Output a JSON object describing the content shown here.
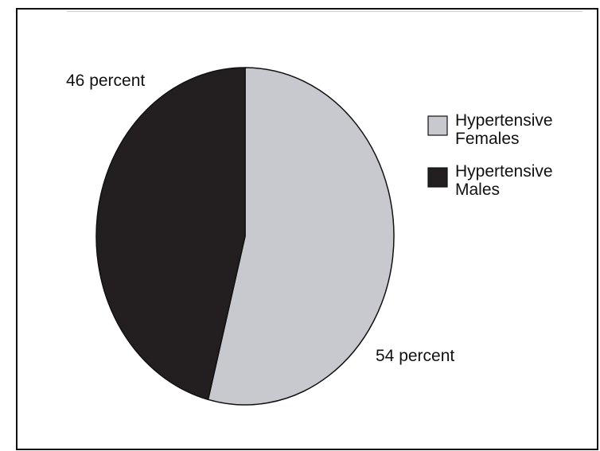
{
  "chart_data": {
    "type": "pie",
    "title": "",
    "slices": [
      {
        "label": "Hypertensive Females",
        "value": 54,
        "data_label": "54 percent",
        "color": "#c8c9ce"
      },
      {
        "label": "Hypertensive Males",
        "value": 46,
        "data_label": "46 percent",
        "color": "#231f20"
      }
    ],
    "legend": {
      "placement": "right",
      "items": [
        {
          "line1": "Hypertensive",
          "line2": "Females",
          "color": "#c8c9ce"
        },
        {
          "line1": "Hypertensive",
          "line2": "Males",
          "color": "#231f20"
        }
      ]
    }
  }
}
